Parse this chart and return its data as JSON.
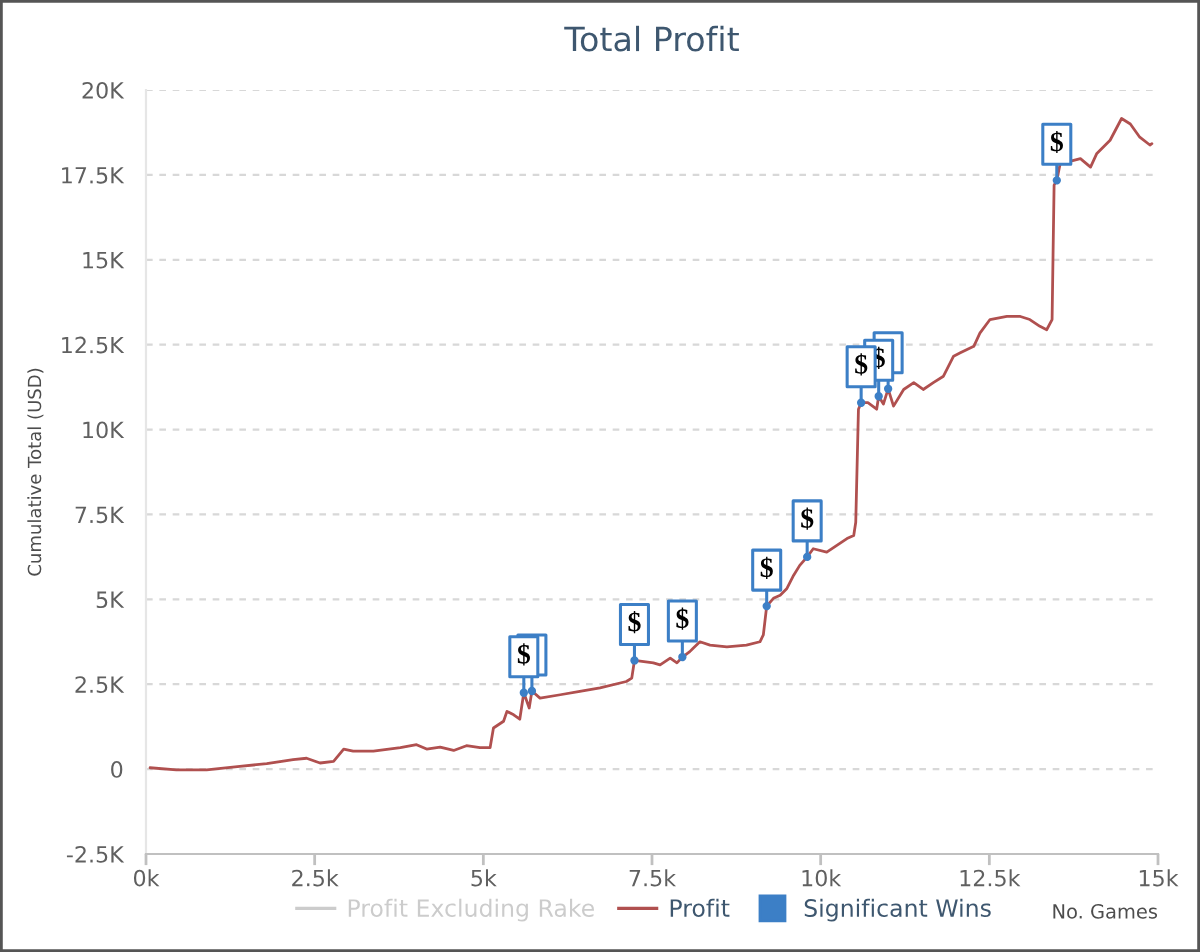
{
  "chart_data": {
    "type": "line",
    "title": "Total Profit",
    "xlabel": "No. Games",
    "ylabel": "Cumulative Total (USD)",
    "xlim": [
      0,
      15000
    ],
    "xticks": [
      {
        "value": 0,
        "label": "0k"
      },
      {
        "value": 2500,
        "label": "2.5k"
      },
      {
        "value": 5000,
        "label": "5k"
      },
      {
        "value": 7500,
        "label": "7.5k"
      },
      {
        "value": 10000,
        "label": "10k"
      },
      {
        "value": 12500,
        "label": "12.5k"
      },
      {
        "value": 15000,
        "label": "15k"
      }
    ],
    "ylim": [
      -2500,
      20000
    ],
    "yticks": [
      {
        "value": -2500,
        "label": "-2.5K"
      },
      0,
      {
        "value": 2500,
        "label": "2.5K"
      },
      {
        "value": 5000,
        "label": "5K"
      },
      {
        "value": 7500,
        "label": "7.5K"
      },
      {
        "value": 10000,
        "label": "10K"
      },
      {
        "value": 12500,
        "label": "12.5K"
      },
      {
        "value": 15000,
        "label": "15K"
      },
      {
        "value": 17500,
        "label": "17.5K"
      },
      {
        "value": 20000,
        "label": "20K"
      }
    ],
    "grid": "y",
    "legend": "bottom",
    "series": [
      {
        "name": "Profit Excluding Rake",
        "color": "#cccccc"
      },
      {
        "name": "Profit",
        "color": "#b0504f",
        "line_style": "solid",
        "x": [
          60,
          450,
          900,
          1390,
          1790,
          2180,
          2380,
          2580,
          2780,
          2930,
          3070,
          3370,
          3770,
          4010,
          4160,
          4360,
          4560,
          4750,
          4950,
          5100,
          5150,
          5300,
          5350,
          5450,
          5540,
          5600,
          5680,
          5720,
          5840,
          6140,
          6430,
          6730,
          7120,
          7200,
          7240,
          7520,
          7620,
          7770,
          7870,
          7950,
          8060,
          8110,
          8210,
          8360,
          8610,
          8900,
          9100,
          9150,
          9200,
          9300,
          9400,
          9500,
          9600,
          9690,
          9800,
          9890,
          10090,
          10240,
          10390,
          10490,
          10520,
          10560,
          10600,
          10700,
          10830,
          10860,
          10930,
          11000,
          11080,
          11230,
          11380,
          11520,
          11670,
          11820,
          11970,
          12070,
          12270,
          12360,
          12510,
          12760,
          12960,
          13100,
          13250,
          13350,
          13430,
          13460,
          13500,
          13550,
          13750,
          13850,
          14000,
          14090,
          14290,
          14460,
          14590,
          14730,
          14880,
          14910
        ],
        "values": [
          40,
          -20,
          -20,
          80,
          160,
          280,
          320,
          180,
          230,
          590,
          530,
          530,
          630,
          720,
          590,
          650,
          550,
          690,
          630,
          630,
          1210,
          1410,
          1700,
          1600,
          1470,
          2250,
          1800,
          2300,
          2090,
          2190,
          2290,
          2390,
          2580,
          2680,
          3200,
          3130,
          3070,
          3270,
          3130,
          3300,
          3460,
          3560,
          3750,
          3650,
          3600,
          3650,
          3750,
          3950,
          4800,
          5030,
          5120,
          5320,
          5710,
          6000,
          6250,
          6490,
          6390,
          6590,
          6790,
          6880,
          7270,
          10600,
          10790,
          10790,
          10600,
          10980,
          10750,
          11200,
          10690,
          11180,
          11380,
          11180,
          11380,
          11570,
          12160,
          12260,
          12450,
          12840,
          13240,
          13330,
          13330,
          13240,
          13040,
          12940,
          13240,
          17200,
          17340,
          17830,
          17930,
          17980,
          17730,
          18120,
          18520,
          19160,
          19000,
          18610,
          18380,
          18420
        ]
      },
      {
        "name": "Significant Wins",
        "type": "scatter",
        "color": "#3c7fc6",
        "marker": "circle",
        "x": [
          5600,
          5720,
          7240,
          7950,
          9200,
          9800,
          10600,
          10860,
          11000,
          13500
        ],
        "values": [
          2250,
          2300,
          3200,
          3300,
          4800,
          6250,
          10790,
          10980,
          11200,
          17340
        ],
        "value_labels": [
          "$",
          null,
          "$",
          "$",
          "$",
          "$",
          "$",
          "$",
          null,
          "$"
        ]
      }
    ]
  }
}
